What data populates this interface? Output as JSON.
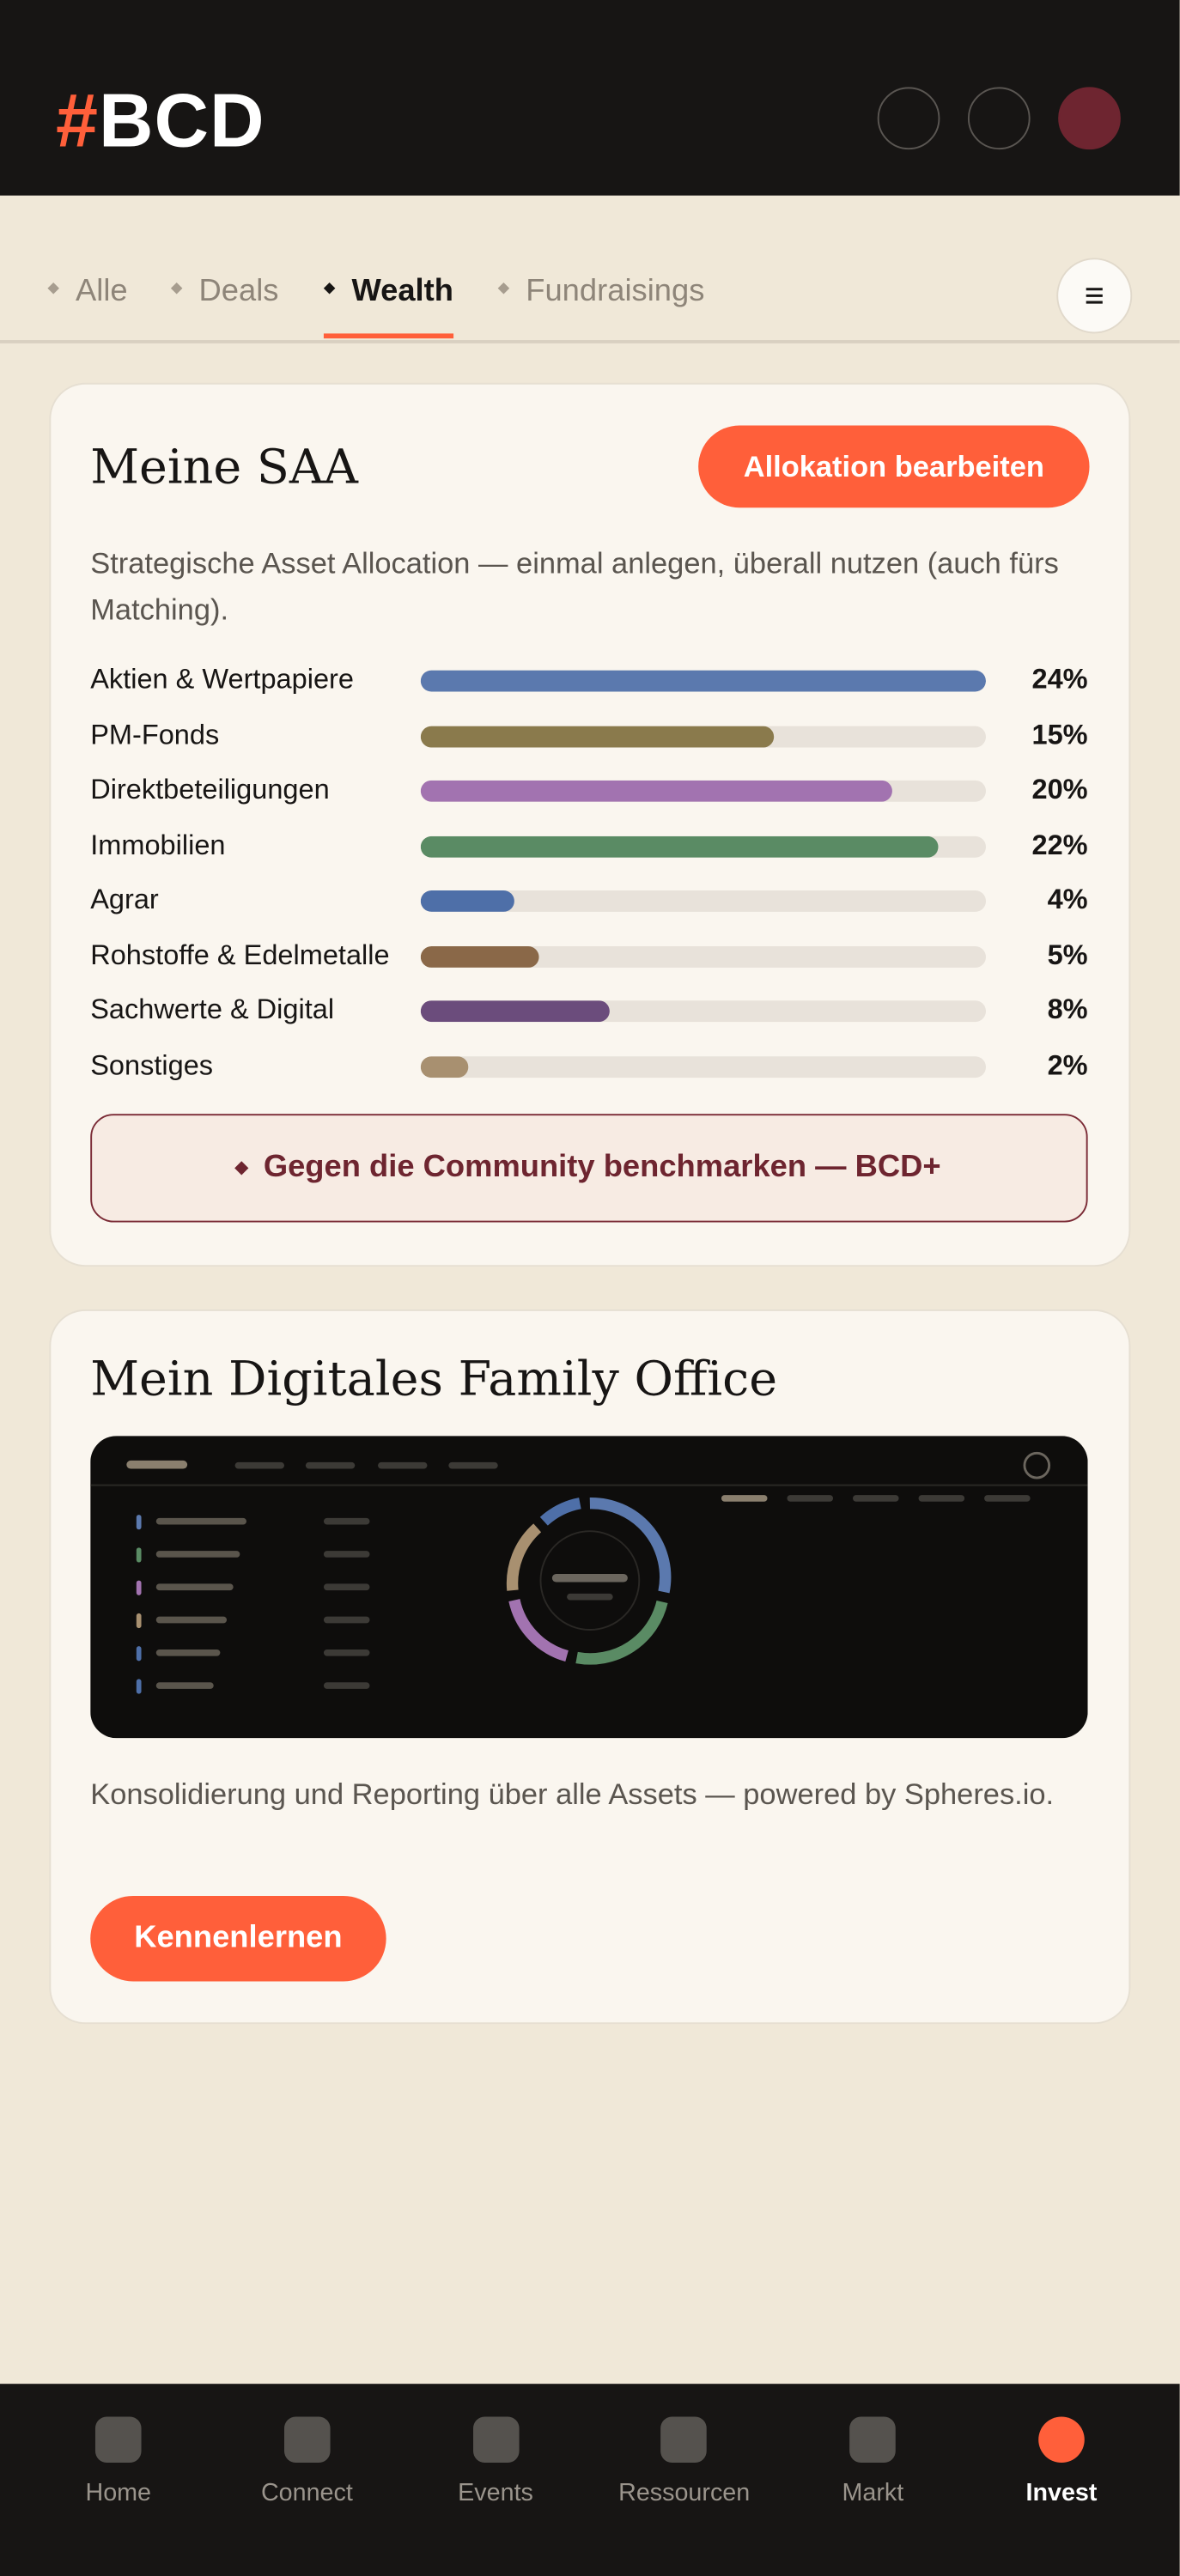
{
  "header": {
    "logo_hash": "#",
    "logo_text": "BCD"
  },
  "tabs": [
    {
      "label": "Alle",
      "active": false
    },
    {
      "label": "Deals",
      "active": false
    },
    {
      "label": "Wealth",
      "active": true
    },
    {
      "label": "Fundraisings",
      "active": false
    }
  ],
  "saa_card": {
    "title": "Meine SAA",
    "button": "Allokation bearbeiten",
    "description": "Strategische Asset Allocation — einmal anlegen, überall nutzen (auch fürs Matching).",
    "allocations": [
      {
        "name": "Aktien & Wertpapiere",
        "value": 24,
        "value_label": "24%",
        "color": "#5b79ae"
      },
      {
        "name": "PM-Fonds",
        "value": 15,
        "value_label": "15%",
        "color": "#8a7a4c"
      },
      {
        "name": "Direktbeteiligungen",
        "value": 20,
        "value_label": "20%",
        "color": "#a273b0"
      },
      {
        "name": "Immobilien",
        "value": 22,
        "value_label": "22%",
        "color": "#5a8b64"
      },
      {
        "name": "Agrar",
        "value": 4,
        "value_label": "4%",
        "color": "#4e6fa8"
      },
      {
        "name": "Rohstoffe & Edelmetalle",
        "value": 5,
        "value_label": "5%",
        "color": "#8a6848"
      },
      {
        "name": "Sachwerte & Digital",
        "value": 8,
        "value_label": "8%",
        "color": "#6b4c7c"
      },
      {
        "name": "Sonstiges",
        "value": 2,
        "value_label": "2%",
        "color": "#a89070"
      }
    ],
    "benchmark_button": "Gegen die Community benchmarken — BCD+"
  },
  "family_office_card": {
    "title": "Mein Digitales Family Office",
    "description": "Konsolidierung und Reporting über alle Assets — powered by Spheres.io.",
    "button": "Kennenlernen"
  },
  "nav": [
    {
      "label": "Home",
      "active": false
    },
    {
      "label": "Connect",
      "active": false
    },
    {
      "label": "Events",
      "active": false
    },
    {
      "label": "Ressourcen",
      "active": false
    },
    {
      "label": "Markt",
      "active": false
    },
    {
      "label": "Invest",
      "active": true
    }
  ]
}
